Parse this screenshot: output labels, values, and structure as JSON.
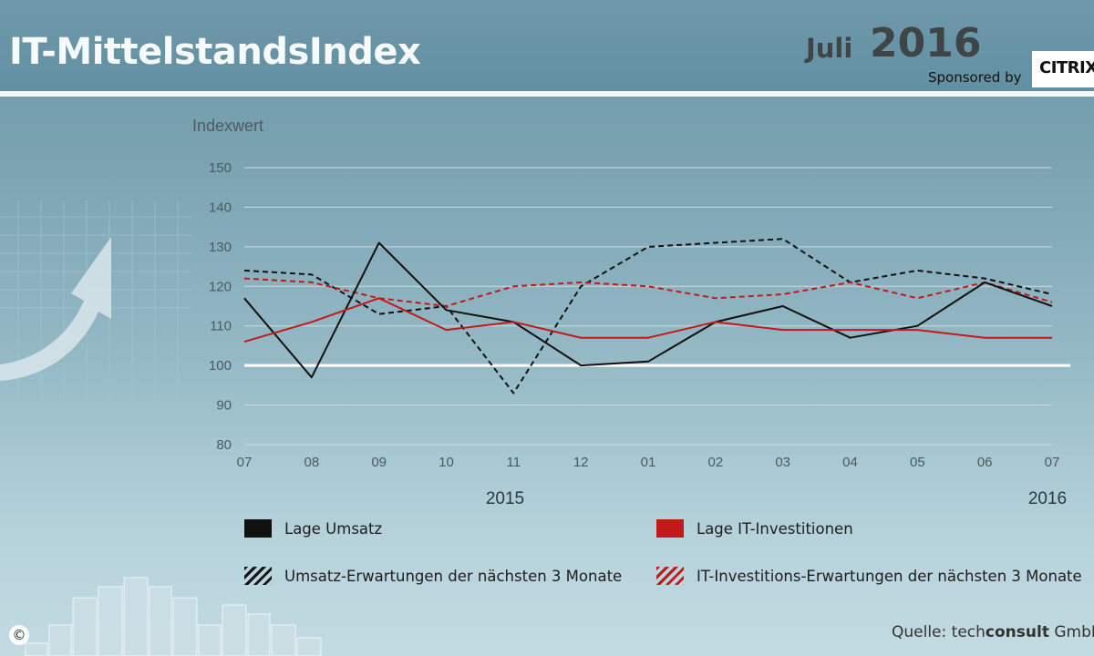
{
  "header": {
    "title": "IT-MittelstandsIndex",
    "month": "Juli",
    "year": "2016",
    "sponsored_label": "Sponsored by",
    "sponsor_logo": "CITRIX"
  },
  "chart_data": {
    "type": "line",
    "ylabel": "Indexwert",
    "ylim": [
      80,
      150
    ],
    "yticks": [
      80,
      90,
      100,
      110,
      120,
      130,
      140,
      150
    ],
    "reference_line": 100,
    "x": [
      "07",
      "08",
      "09",
      "10",
      "11",
      "12",
      "01",
      "02",
      "03",
      "04",
      "05",
      "06",
      "07"
    ],
    "year_labels": [
      "2015",
      "2016"
    ],
    "grid": true,
    "series": [
      {
        "name": "Lage Umsatz",
        "color": "#111111",
        "dashed": false,
        "values": [
          117,
          97,
          131,
          114,
          111,
          100,
          101,
          111,
          115,
          107,
          110,
          121,
          115
        ]
      },
      {
        "name": "Umsatz-Erwartungen der nächsten 3 Monate",
        "color": "#111111",
        "dashed": true,
        "values": [
          124,
          123,
          113,
          115,
          93,
          120,
          130,
          131,
          132,
          121,
          124,
          122,
          118
        ]
      },
      {
        "name": "Lage IT-Investitionen",
        "color": "#c21a1a",
        "dashed": false,
        "values": [
          106,
          111,
          117,
          109,
          111,
          107,
          107,
          111,
          109,
          109,
          109,
          107,
          107
        ]
      },
      {
        "name": "IT-Investitions-Erwartungen der nächsten 3 Monate",
        "color": "#c21a1a",
        "dashed": true,
        "values": [
          122,
          121,
          117,
          115,
          120,
          121,
          120,
          117,
          118,
          121,
          117,
          121,
          116
        ]
      }
    ]
  },
  "legend": {
    "lage_umsatz": "Lage Umsatz",
    "lage_it": "Lage IT-Investitionen",
    "umsatz_erw": "Umsatz-Erwartungen  der nächsten 3 Monate",
    "it_erw": "IT-Investitions-Erwartungen der nächsten 3 Monate"
  },
  "footer": {
    "source_prefix": "Quelle:  tech",
    "source_bold": "consult",
    "source_suffix": "  GmbH",
    "copyright": "©"
  },
  "colors": {
    "background": "#7ba3b2",
    "header_rule": "#f4f7f8",
    "black_series": "#111111",
    "red_series": "#c21a1a"
  }
}
